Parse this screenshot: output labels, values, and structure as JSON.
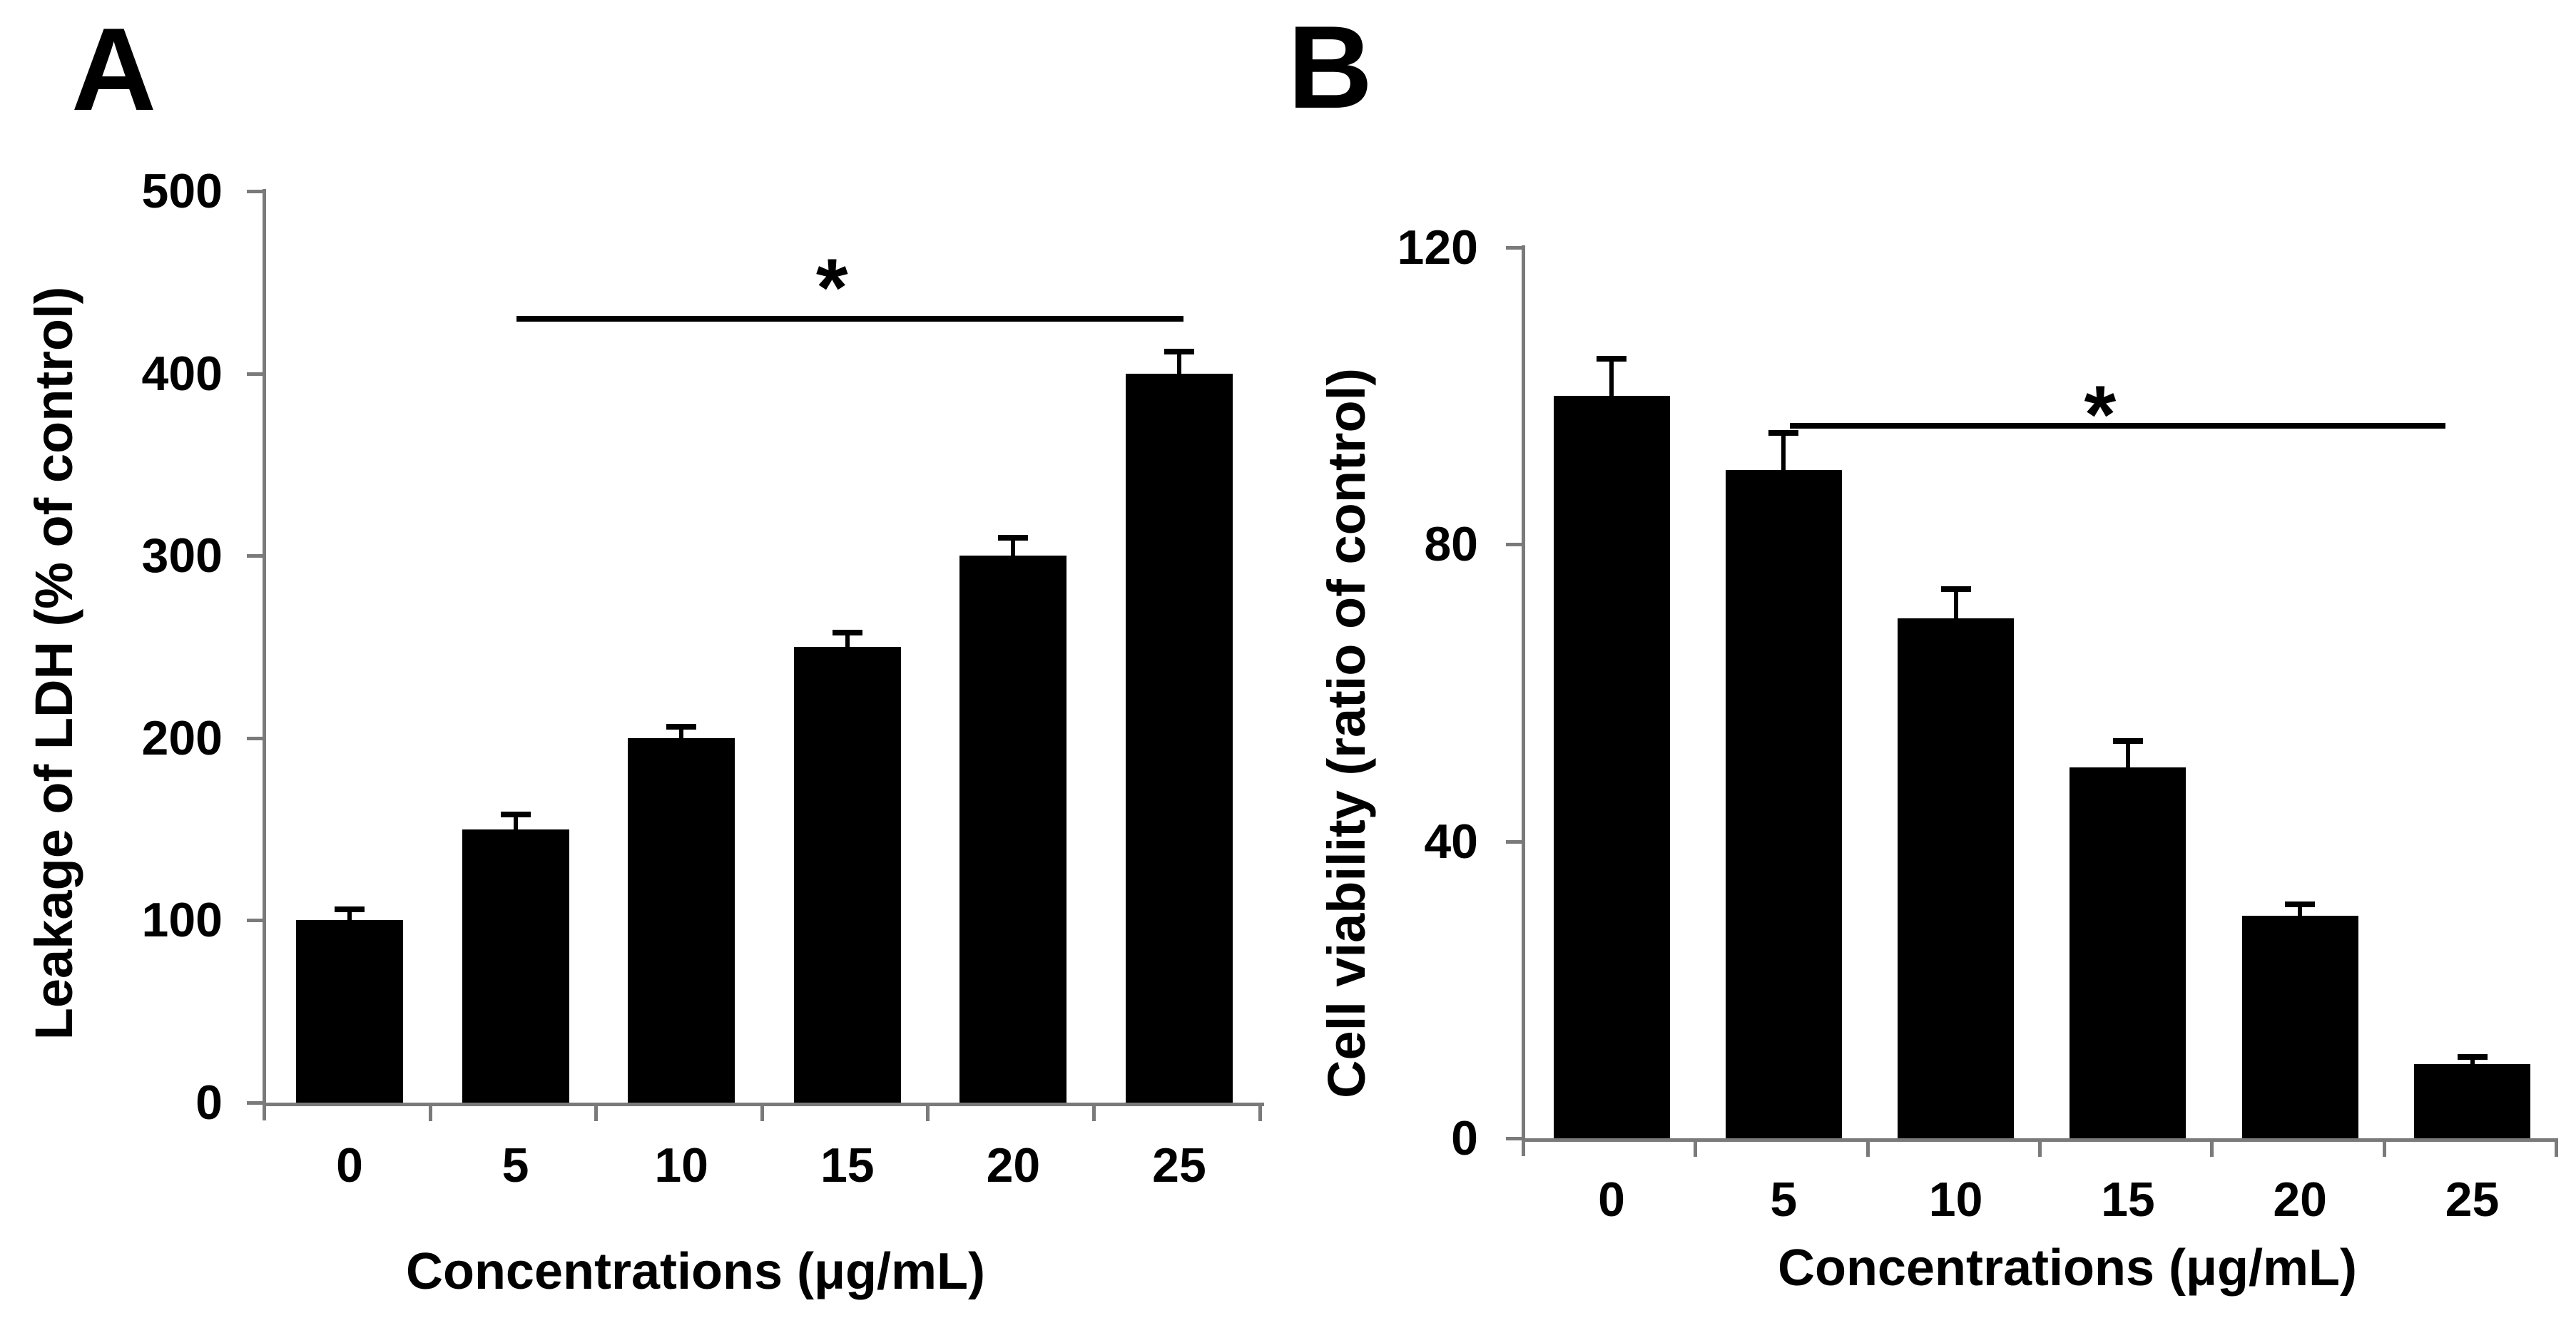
{
  "figure": {
    "background": "#ffffff",
    "axis_color": "#7a7a7a",
    "bar_color": "#000000"
  },
  "chart_data": [
    {
      "type": "bar",
      "panel_label": "A",
      "categories": [
        "0",
        "5",
        "10",
        "15",
        "20",
        "25"
      ],
      "values": [
        100,
        150,
        200,
        250,
        300,
        400
      ],
      "errors": [
        6,
        8,
        6,
        8,
        10,
        12
      ],
      "xlabel": "Concentrations (μg/mL)",
      "ylabel": "Leakage of LDH (% of control)",
      "ylim": [
        0,
        500
      ],
      "yticks": [
        0,
        100,
        200,
        300,
        400,
        500
      ],
      "grid": false,
      "legend": "none",
      "bar_color": "#000000",
      "significance": {
        "symbol": "*",
        "from_category": "5",
        "to_category": "25",
        "line_y_value": 430
      }
    },
    {
      "type": "bar",
      "panel_label": "B",
      "categories": [
        "0",
        "5",
        "10",
        "15",
        "20",
        "25"
      ],
      "values": [
        100,
        90,
        70,
        50,
        30,
        10
      ],
      "errors": [
        5,
        5,
        4,
        3.5,
        1.5,
        1
      ],
      "xlabel": "Concentrations (μg/mL)",
      "ylabel": "Cell viability (ratio of control)",
      "ylim": [
        0,
        120
      ],
      "yticks": [
        0,
        40,
        80,
        120
      ],
      "grid": false,
      "legend": "none",
      "bar_color": "#000000",
      "significance": {
        "symbol": "*",
        "from_category": "5",
        "to_category": "25",
        "line_y_value": 96
      }
    }
  ]
}
